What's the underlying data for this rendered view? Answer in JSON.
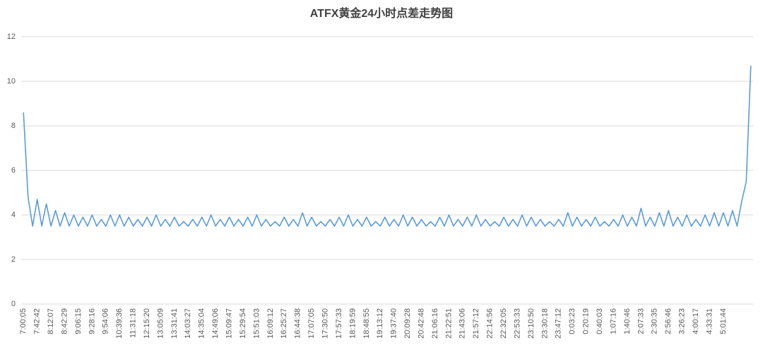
{
  "chart_data": {
    "type": "line",
    "title": "ATFX黄金24小时点差走势图",
    "categories": [
      "7:00:05",
      null,
      null,
      "7:42:42",
      null,
      null,
      "8:12:07",
      null,
      null,
      "8:42:29",
      null,
      null,
      "9:06:15",
      null,
      null,
      "9:28:16",
      null,
      null,
      "9:54:06",
      null,
      null,
      "10:39:36",
      null,
      null,
      "11:31:18",
      null,
      null,
      "12:15:20",
      null,
      null,
      "13:05:09",
      null,
      null,
      "13:31:41",
      null,
      null,
      "14:03:27",
      null,
      null,
      "14:35:04",
      null,
      null,
      "14:49:06",
      null,
      null,
      "15:09:47",
      null,
      null,
      "15:29:54",
      null,
      null,
      "15:51:03",
      null,
      null,
      "16:09:12",
      null,
      null,
      "16:25:27",
      null,
      null,
      "16:44:38",
      null,
      null,
      "17:07:05",
      null,
      null,
      "17:30:50",
      null,
      null,
      "17:57:33",
      null,
      null,
      "18:19:59",
      null,
      null,
      "18:48:55",
      null,
      null,
      "19:13:12",
      null,
      null,
      "19:37:40",
      null,
      null,
      "20:09:28",
      null,
      null,
      "20:42:48",
      null,
      null,
      "21:06:16",
      null,
      null,
      "21:22:51",
      null,
      null,
      "21:43:06",
      null,
      null,
      "21:57:12",
      null,
      null,
      "22:14:56",
      null,
      null,
      "22:32:05",
      null,
      null,
      "22:53:33",
      null,
      null,
      "23:10:50",
      null,
      null,
      "23:30:18",
      null,
      null,
      "23:47:12",
      null,
      null,
      "0:03:23",
      null,
      null,
      "0:20:19",
      null,
      null,
      "0:40:03",
      null,
      null,
      "1:07:16",
      null,
      null,
      "1:40:46",
      null,
      null,
      "2:07:33",
      null,
      null,
      "2:30:35",
      null,
      null,
      "2:56:46",
      null,
      null,
      "3:26:23",
      null,
      null,
      "4:00:17",
      null,
      null,
      "4:33:31",
      null,
      null,
      "5:01:44",
      null,
      null,
      null,
      null,
      null,
      null
    ],
    "values": [
      8.6,
      4.8,
      3.5,
      4.7,
      3.5,
      4.5,
      3.5,
      4.2,
      3.5,
      4.1,
      3.5,
      4.0,
      3.5,
      3.9,
      3.5,
      4.0,
      3.5,
      3.8,
      3.5,
      4.0,
      3.5,
      4.0,
      3.5,
      3.9,
      3.5,
      3.8,
      3.5,
      3.9,
      3.5,
      4.0,
      3.5,
      3.8,
      3.5,
      3.9,
      3.5,
      3.7,
      3.5,
      3.8,
      3.5,
      3.9,
      3.5,
      4.0,
      3.5,
      3.8,
      3.5,
      3.9,
      3.5,
      3.8,
      3.5,
      3.9,
      3.5,
      4.0,
      3.5,
      3.8,
      3.5,
      3.7,
      3.5,
      3.9,
      3.5,
      3.8,
      3.5,
      4.1,
      3.5,
      3.9,
      3.5,
      3.7,
      3.5,
      3.8,
      3.5,
      3.9,
      3.5,
      4.0,
      3.5,
      3.8,
      3.5,
      3.9,
      3.5,
      3.7,
      3.5,
      3.9,
      3.5,
      3.8,
      3.5,
      4.0,
      3.5,
      3.9,
      3.5,
      3.8,
      3.5,
      3.7,
      3.5,
      3.9,
      3.5,
      4.0,
      3.5,
      3.8,
      3.5,
      3.9,
      3.5,
      4.0,
      3.5,
      3.8,
      3.5,
      3.7,
      3.5,
      3.9,
      3.5,
      3.8,
      3.5,
      4.0,
      3.5,
      3.9,
      3.5,
      3.8,
      3.5,
      3.7,
      3.5,
      3.8,
      3.5,
      4.1,
      3.5,
      3.9,
      3.5,
      3.8,
      3.5,
      3.9,
      3.5,
      3.7,
      3.5,
      3.8,
      3.5,
      4.0,
      3.5,
      3.9,
      3.5,
      4.3,
      3.5,
      3.9,
      3.5,
      4.1,
      3.5,
      4.2,
      3.5,
      3.9,
      3.5,
      4.0,
      3.5,
      3.8,
      3.5,
      4.0,
      3.5,
      4.1,
      3.5,
      4.1,
      3.5,
      4.2,
      3.5,
      4.6,
      5.5,
      10.7
    ],
    "color": "#5b9bd5",
    "ylim": [
      0,
      12
    ],
    "yticks": [
      0,
      2,
      4,
      6,
      8,
      10,
      12
    ],
    "grid": true
  }
}
